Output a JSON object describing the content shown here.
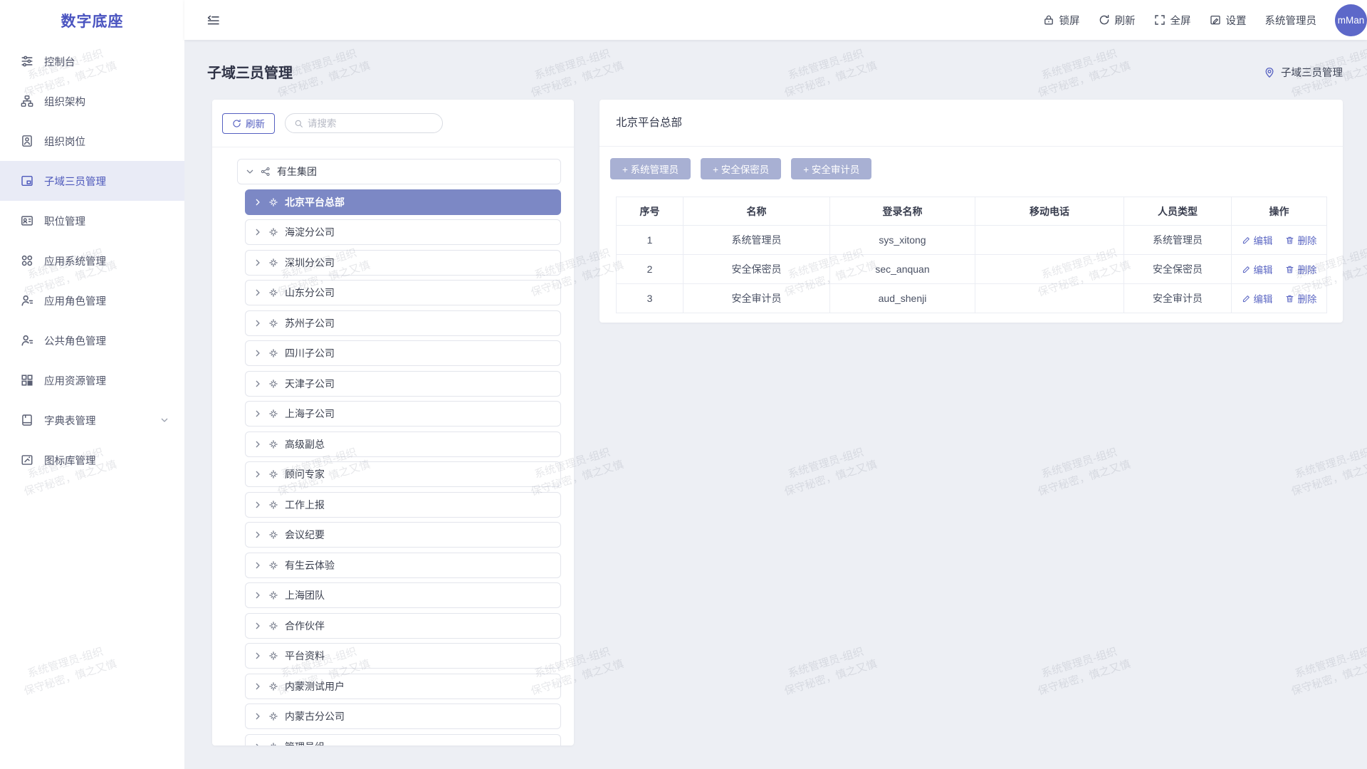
{
  "watermark": {
    "line1": "系统管理员-组织",
    "line2": "保守秘密，慎之又慎"
  },
  "sidebar": {
    "logo": "数字底座",
    "items": [
      {
        "icon": "sliders",
        "label": "控制台"
      },
      {
        "icon": "org",
        "label": "组织架构"
      },
      {
        "icon": "badge",
        "label": "组织岗位"
      },
      {
        "icon": "layout",
        "label": "子域三员管理",
        "active": true
      },
      {
        "icon": "idcard",
        "label": "职位管理"
      },
      {
        "icon": "appsys",
        "label": "应用系统管理"
      },
      {
        "icon": "role",
        "label": "应用角色管理"
      },
      {
        "icon": "role",
        "label": "公共角色管理"
      },
      {
        "icon": "resource",
        "label": "应用资源管理"
      },
      {
        "icon": "dict",
        "label": "字典表管理",
        "has_submenu": true
      },
      {
        "icon": "iconlib",
        "label": "图标库管理"
      }
    ]
  },
  "topbar": {
    "actions": [
      {
        "icon": "lock",
        "label": "锁屏"
      },
      {
        "icon": "refresh",
        "label": "刷新"
      },
      {
        "icon": "fullscreen",
        "label": "全屏"
      },
      {
        "icon": "settings",
        "label": "设置"
      }
    ],
    "username": "系统管理员",
    "avatar_text": "mMan"
  },
  "page": {
    "title": "子域三员管理",
    "breadcrumb": "子域三员管理"
  },
  "tree_panel": {
    "refresh_label": "刷新",
    "search_placeholder": "请搜索",
    "nodes": [
      {
        "label": "有生集团",
        "level": 0,
        "expanded": true
      },
      {
        "label": "北京平台总部",
        "level": 1,
        "selected": true
      },
      {
        "label": "海淀分公司",
        "level": 1
      },
      {
        "label": "深圳分公司",
        "level": 1
      },
      {
        "label": "山东分公司",
        "level": 1
      },
      {
        "label": "苏州子公司",
        "level": 1
      },
      {
        "label": "四川子公司",
        "level": 1
      },
      {
        "label": "天津子公司",
        "level": 1
      },
      {
        "label": "上海子公司",
        "level": 1
      },
      {
        "label": "高级副总",
        "level": 1
      },
      {
        "label": "顾问专家",
        "level": 1
      },
      {
        "label": "工作上报",
        "level": 1
      },
      {
        "label": "会议纪要",
        "level": 1
      },
      {
        "label": "有生云体验",
        "level": 1
      },
      {
        "label": "上海团队",
        "level": 1
      },
      {
        "label": "合作伙伴",
        "level": 1
      },
      {
        "label": "平台资料",
        "level": 1
      },
      {
        "label": "内蒙测试用户",
        "level": 1
      },
      {
        "label": "内蒙古分公司",
        "level": 1
      },
      {
        "label": "管理员组",
        "level": 1
      }
    ]
  },
  "detail_panel": {
    "title": "北京平台总部",
    "add_buttons": [
      "+ 系统管理员",
      "+ 安全保密员",
      "+ 安全审计员"
    ],
    "table": {
      "headers": [
        "序号",
        "名称",
        "登录名称",
        "移动电话",
        "人员类型",
        "操作"
      ],
      "rows": [
        {
          "no": "1",
          "name": "系统管理员",
          "login": "sys_xitong",
          "phone": "",
          "type": "系统管理员"
        },
        {
          "no": "2",
          "name": "安全保密员",
          "login": "sec_anquan",
          "phone": "",
          "type": "安全保密员"
        },
        {
          "no": "3",
          "name": "安全审计员",
          "login": "aud_shenji",
          "phone": "",
          "type": "安全审计员"
        }
      ],
      "edit_label": "编辑",
      "delete_label": "删除"
    }
  },
  "colors": {
    "accent": "#5560c1",
    "selected_node_bg": "#7c88c5",
    "add_button_bg": "#a8b0d3",
    "avatar_bg": "#5d68c9",
    "content_bg": "#edeff4"
  }
}
